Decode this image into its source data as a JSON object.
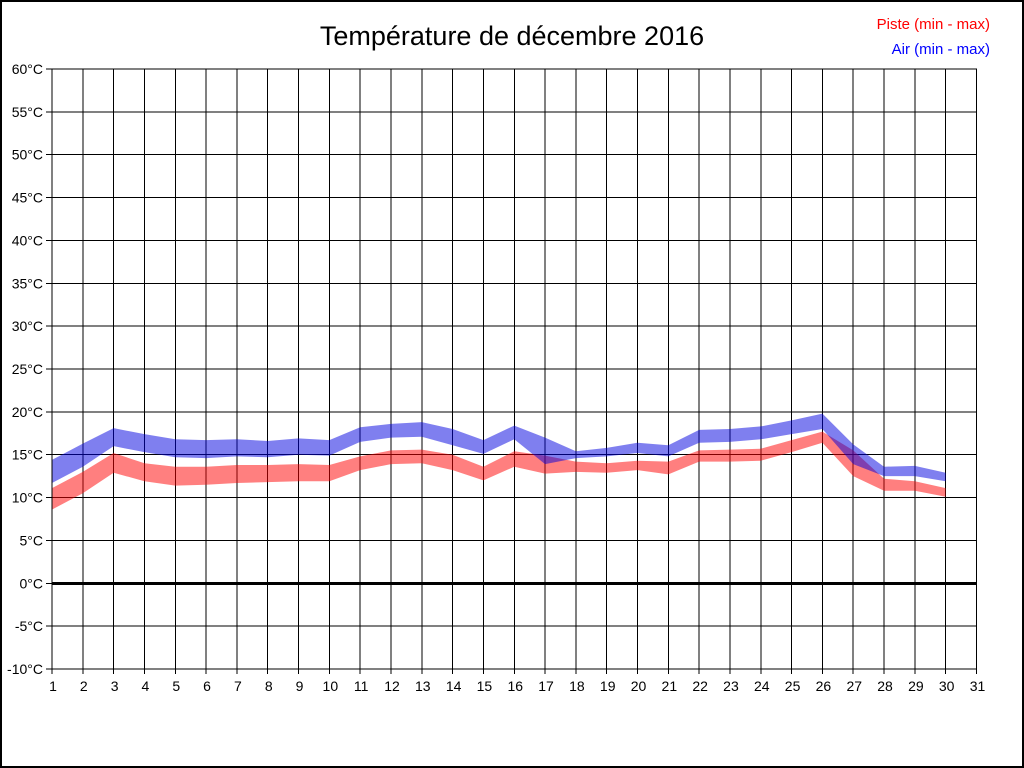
{
  "legend": {
    "piste": "Piste (min - max)",
    "air": "Air (min - max)",
    "piste_text_color": "#ff0000",
    "air_text_color": "#0000ff"
  },
  "chart_data": {
    "type": "area",
    "title": "Température de décembre 2016",
    "xlabel": "",
    "ylabel": "",
    "xlim": [
      1,
      31
    ],
    "ylim": [
      -10,
      60
    ],
    "y_tick_step": 5,
    "grid": "on",
    "legend_position": "top-right",
    "zero_line": {
      "value": 0,
      "color": "#000000",
      "thick": true
    },
    "x_tick_labels": [
      "1",
      "2",
      "3",
      "4",
      "5",
      "6",
      "7",
      "8",
      "9",
      "10",
      "11",
      "12",
      "13",
      "14",
      "15",
      "16",
      "17",
      "18",
      "19",
      "20",
      "21",
      "22",
      "23",
      "24",
      "25",
      "26",
      "27",
      "28",
      "29",
      "30",
      "31"
    ],
    "y_tick_labels": [
      "60°C",
      "55°C",
      "50°C",
      "45°C",
      "40°C",
      "35°C",
      "30°C",
      "25°C",
      "20°C",
      "15°C",
      "10°C",
      "5°C",
      "0°C",
      "-5°C",
      "-10°C"
    ],
    "x_days": [
      1,
      2,
      3,
      4,
      5,
      6,
      7,
      8,
      9,
      10,
      11,
      12,
      13,
      14,
      15,
      16,
      17,
      18,
      19,
      20,
      21,
      22,
      23,
      24,
      25,
      26,
      27,
      28,
      29,
      30
    ],
    "series": [
      {
        "name": "Piste (min - max)",
        "band": true,
        "color": "#ff0000",
        "opacity": 0.5,
        "min": [
          8.6,
          10.5,
          12.9,
          11.9,
          11.4,
          11.5,
          11.7,
          11.8,
          11.9,
          11.9,
          13.2,
          13.9,
          14.0,
          13.2,
          12.0,
          13.6,
          12.8,
          13.0,
          12.9,
          13.2,
          12.7,
          14.2,
          14.2,
          14.3,
          15.3,
          16.4,
          12.5,
          10.8,
          10.8,
          10.1
        ],
        "max": [
          11.1,
          13.0,
          15.2,
          14.0,
          13.6,
          13.6,
          13.8,
          13.8,
          13.9,
          13.8,
          14.8,
          15.5,
          15.6,
          15.0,
          13.6,
          15.4,
          14.9,
          14.2,
          14.0,
          14.3,
          14.2,
          15.5,
          15.6,
          15.7,
          16.7,
          17.7,
          15.5,
          12.2,
          11.9,
          11.1
        ]
      },
      {
        "name": "Air (min - max)",
        "band": true,
        "color": "#0000e0",
        "opacity": 0.5,
        "min": [
          11.7,
          13.6,
          16.0,
          15.3,
          14.7,
          14.6,
          14.8,
          14.7,
          15.0,
          14.9,
          16.5,
          17.0,
          17.1,
          16.1,
          15.1,
          16.8,
          13.9,
          14.6,
          14.8,
          15.2,
          14.8,
          16.4,
          16.5,
          16.8,
          17.4,
          18.0,
          13.9,
          12.5,
          12.5,
          11.9
        ],
        "max": [
          14.4,
          16.3,
          18.1,
          17.4,
          16.8,
          16.7,
          16.8,
          16.6,
          16.9,
          16.7,
          18.2,
          18.6,
          18.8,
          18.0,
          16.7,
          18.4,
          17.0,
          15.4,
          15.8,
          16.4,
          16.1,
          17.9,
          18.0,
          18.3,
          19.0,
          19.8,
          16.2,
          13.6,
          13.7,
          12.9
        ]
      }
    ]
  }
}
